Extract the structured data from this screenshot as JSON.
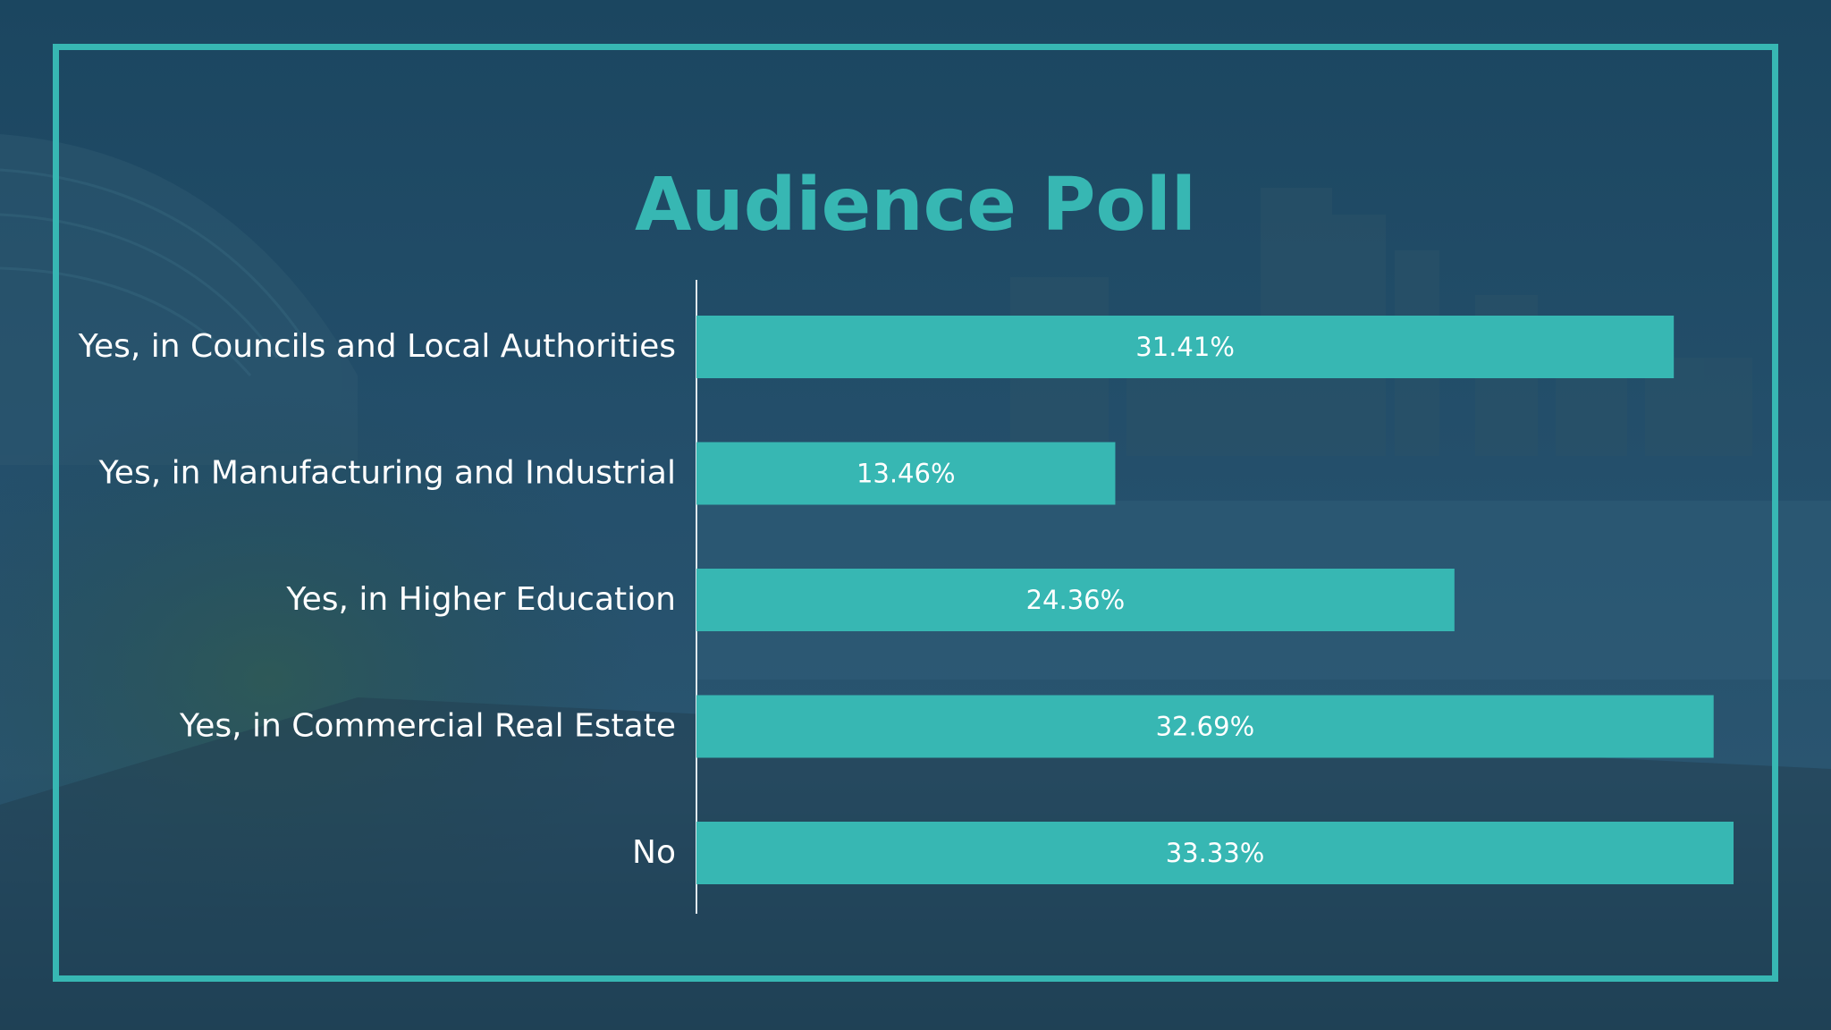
{
  "slide": {
    "title": "Audience Poll"
  },
  "colors": {
    "accent": "#37b7b3",
    "background": "#1d4a63",
    "text": "#ffffff"
  },
  "chart_data": {
    "type": "bar",
    "orientation": "horizontal",
    "title": "Audience Poll",
    "categories": [
      "Yes, in Councils and Local Authorities",
      "Yes, in Manufacturing and Industrial",
      "Yes, in Higher Education",
      "Yes, in Commercial Real Estate",
      "No"
    ],
    "values": [
      31.41,
      13.46,
      24.36,
      32.69,
      33.33
    ],
    "value_labels": [
      "31.41%",
      "13.46%",
      "24.36%",
      "32.69%",
      "33.33%"
    ],
    "unit": "%",
    "xlim": [
      0,
      33.33
    ],
    "grid": false,
    "legend": "none"
  }
}
